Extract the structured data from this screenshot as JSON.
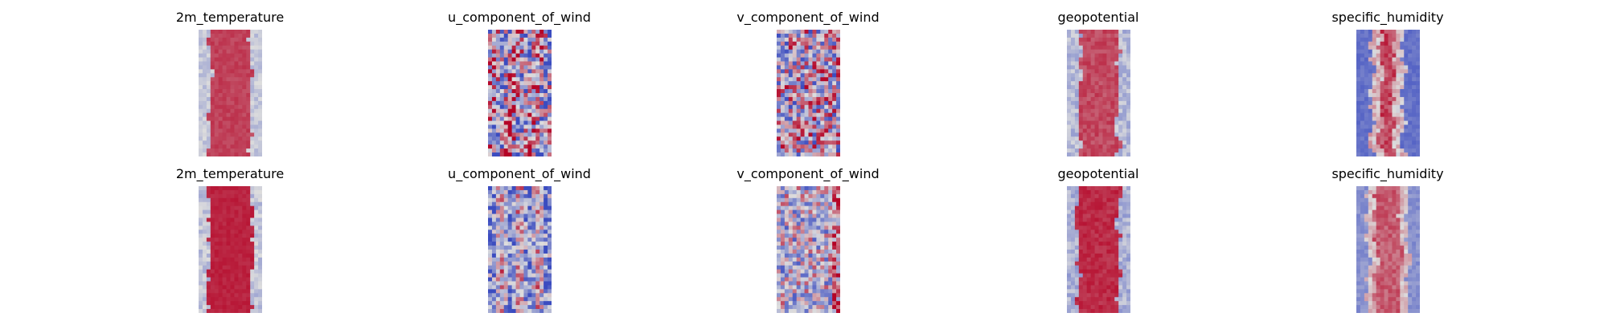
{
  "chart_data": {
    "type": "heatmap",
    "colormap": "coolwarm",
    "colormap_colors": {
      "low": "#3b4cc0",
      "mid": "#dddddd",
      "high": "#b40426"
    },
    "grid": false,
    "axes_visible": false,
    "layout": {
      "rows": 2,
      "cols": 5
    },
    "panels": [
      {
        "title": "2m_temperature",
        "row": 0,
        "col": 0,
        "pattern": "temp_band",
        "seed": 11
      },
      {
        "title": "u_component_of_wind",
        "row": 0,
        "col": 1,
        "pattern": "u_wind_streaks",
        "seed": 12
      },
      {
        "title": "v_component_of_wind",
        "row": 0,
        "col": 2,
        "pattern": "v_wind_noise",
        "seed": 13
      },
      {
        "title": "geopotential",
        "row": 0,
        "col": 3,
        "pattern": "geo_band",
        "seed": 14
      },
      {
        "title": "specific_humidity",
        "row": 0,
        "col": 4,
        "pattern": "humidity_core",
        "seed": 15
      },
      {
        "title": "2m_temperature",
        "row": 1,
        "col": 0,
        "pattern": "temp_band_wide",
        "seed": 21
      },
      {
        "title": "u_component_of_wind",
        "row": 1,
        "col": 1,
        "pattern": "u_wind_columns",
        "seed": 22
      },
      {
        "title": "v_component_of_wind",
        "row": 1,
        "col": 2,
        "pattern": "v_wind_grid",
        "seed": 23
      },
      {
        "title": "geopotential",
        "row": 1,
        "col": 3,
        "pattern": "geo_band_strong",
        "seed": 24
      },
      {
        "title": "specific_humidity",
        "row": 1,
        "col": 4,
        "pattern": "humidity_wide",
        "seed": 25
      }
    ]
  }
}
